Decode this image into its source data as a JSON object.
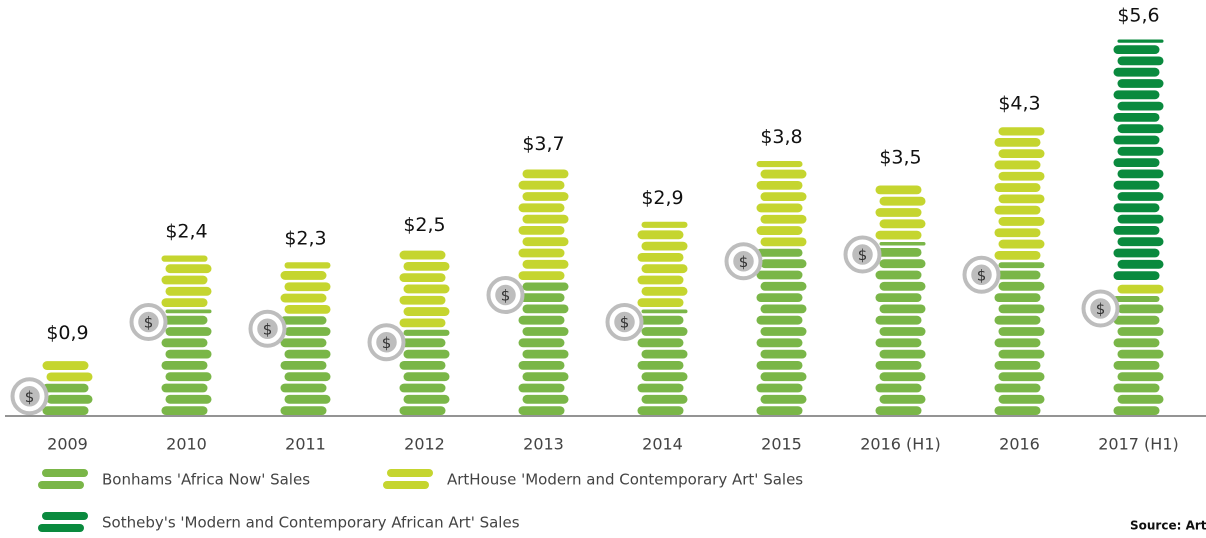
{
  "chart_data": {
    "type": "stacked_bar",
    "categories": [
      "2009",
      "2010",
      "2011",
      "2012",
      "2013",
      "2014",
      "2015",
      "2016 (H1)",
      "2016",
      "2017 (H1)"
    ],
    "series": [
      {
        "name": "Bonhams 'Africa Now' Sales",
        "color": "#7ab648",
        "values": [
          0.5,
          1.6,
          1.5,
          1.3,
          2.0,
          1.6,
          2.5,
          2.6,
          2.3,
          1.8
        ]
      },
      {
        "name": "ArtHouse 'Modern and Contemporary Art' Sales",
        "color": "#c5d52f",
        "values": [
          0.4,
          0.8,
          0.8,
          1.2,
          1.7,
          1.3,
          1.3,
          0.9,
          2.0,
          0.2
        ]
      },
      {
        "name": "Sotheby's 'Modern and Contemporary African Art' Sales",
        "color": "#0a8a3e",
        "values": [
          0,
          0,
          0,
          0,
          0,
          0,
          0,
          0,
          0,
          3.6
        ]
      }
    ],
    "totals": [
      0.9,
      2.4,
      2.3,
      2.5,
      3.7,
      2.9,
      3.8,
      3.5,
      4.3,
      5.6
    ],
    "total_labels": [
      "$0,9",
      "$2,4",
      "$2,3",
      "$2,5",
      "$3,7",
      "$2,9",
      "$3,8",
      "$3,5",
      "$4,3",
      "$5,6"
    ],
    "ylim": [
      0,
      6
    ],
    "source": "Source: ArtTactic"
  }
}
